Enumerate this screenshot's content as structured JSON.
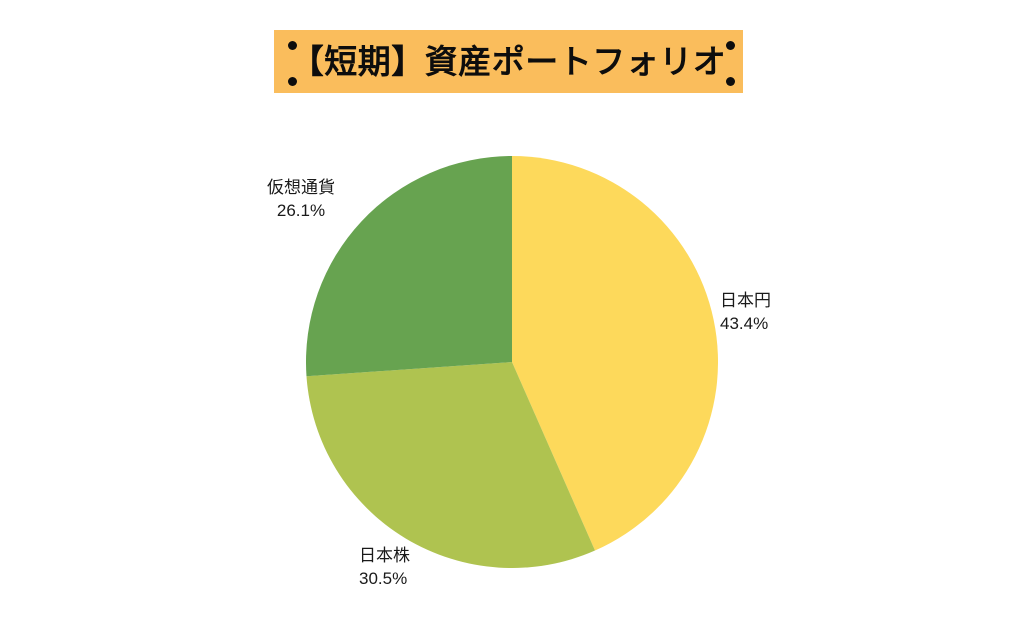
{
  "header": {
    "title": "【短期】資産ポートフォリオ"
  },
  "colors": {
    "banner": "#FABD5C",
    "banner_dots": "#0d0d0d",
    "background": "#FFFFFF",
    "label_text": "#1a1a1a"
  },
  "chart_data": {
    "type": "pie",
    "title": "【短期】資産ポートフォリオ",
    "start_angle_deg": 0,
    "direction": "clockwise",
    "legend_position": "none",
    "label_position": "outside",
    "segments": [
      {
        "label": "日本円",
        "value": 43.4,
        "display_pct": "43.4%",
        "color": "#FDD95B"
      },
      {
        "label": "日本株",
        "value": 30.5,
        "display_pct": "30.5%",
        "color": "#AFC350"
      },
      {
        "label": "仮想通貨",
        "value": 26.1,
        "display_pct": "26.1%",
        "color": "#67A350"
      }
    ]
  }
}
